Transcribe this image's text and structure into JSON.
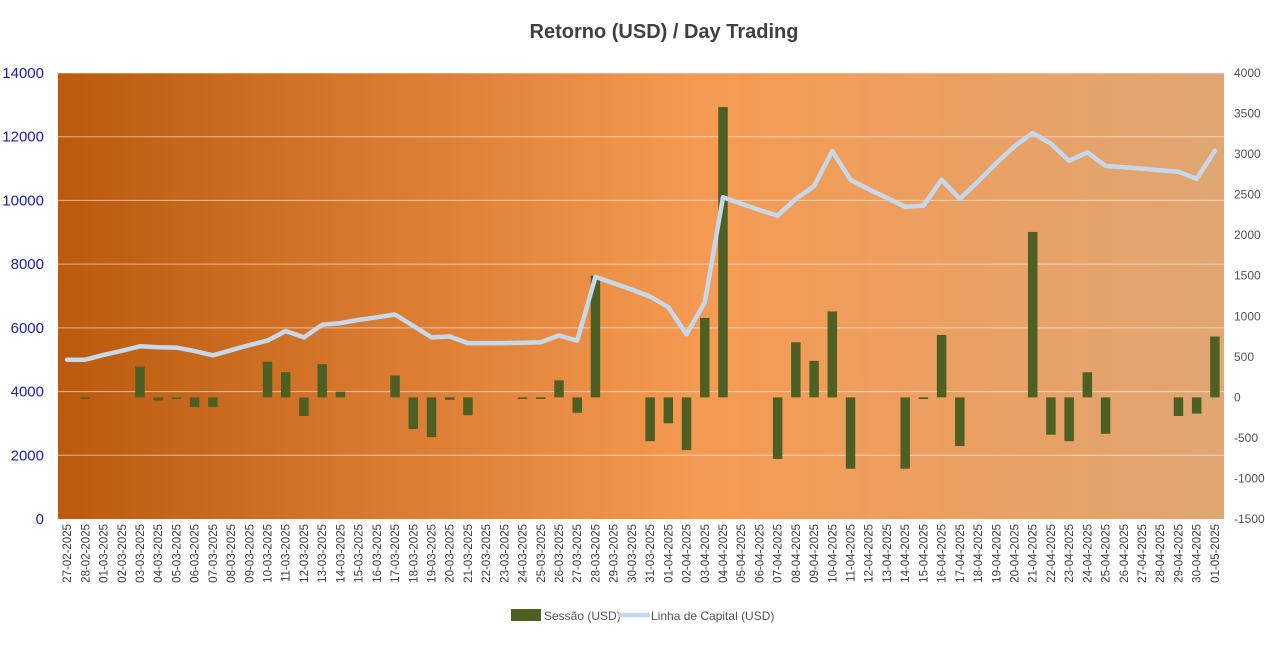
{
  "chart_data": {
    "type": "bar+line",
    "title": "Retorno (USD) / Day Trading",
    "colors": {
      "bar": "#4e5f24",
      "line": "#c6d9ec",
      "plot_gradient_start": "#bb5a0d",
      "plot_gradient_mid": "#f59a52",
      "plot_gradient_end": "#e0a673",
      "left_tick_color": "#1f1fa8"
    },
    "left_axis": {
      "ylim": [
        0,
        14000
      ],
      "ticks": [
        "0",
        "2000",
        "4000",
        "6000",
        "8000",
        "10000",
        "12000",
        "14000"
      ]
    },
    "right_axis": {
      "ylim": [
        -1500,
        4000
      ],
      "ticks": [
        "-1500",
        "-1000",
        "-500",
        "0",
        "500",
        "1000",
        "1500",
        "2000",
        "2500",
        "3000",
        "3500",
        "4000"
      ]
    },
    "categories": [
      "27-02-2025",
      "28-02-2025",
      "01-03-2025",
      "02-03-2025",
      "03-03-2025",
      "04-03-2025",
      "05-03-2025",
      "06-03-2025",
      "07-03-2025",
      "08-03-2025",
      "09-03-2025",
      "10-03-2025",
      "11-03-2025",
      "12-03-2025",
      "13-03-2025",
      "14-03-2025",
      "15-03-2025",
      "16-03-2025",
      "17-03-2025",
      "18-03-2025",
      "19-03-2025",
      "20-03-2025",
      "21-03-2025",
      "22-03-2025",
      "23-03-2025",
      "24-03-2025",
      "25-03-2025",
      "26-03-2025",
      "27-03-2025",
      "28-03-2025",
      "29-03-2025",
      "30-03-2025",
      "31-03-2025",
      "01-04-2025",
      "02-04-2025",
      "03-04-2025",
      "04-04-2025",
      "05-04-2025",
      "06-04-2025",
      "07-04-2025",
      "08-04-2025",
      "09-04-2025",
      "10-04-2025",
      "11-04-2025",
      "12-04-2025",
      "13-04-2025",
      "14-04-2025",
      "15-04-2025",
      "16-04-2025",
      "17-04-2025",
      "18-04-2025",
      "19-04-2025",
      "20-04-2025",
      "21-04-2025",
      "22-04-2025",
      "23-04-2025",
      "24-04-2025",
      "25-04-2025",
      "26-04-2025",
      "27-04-2025",
      "28-04-2025",
      "29-04-2025",
      "30-04-2025",
      "01-05-2025"
    ],
    "series": [
      {
        "name": "Sessão (USD)",
        "type": "bar",
        "axis": "right",
        "values": [
          0,
          -20,
          0,
          0,
          380,
          -40,
          -20,
          -120,
          -120,
          0,
          0,
          440,
          310,
          -230,
          410,
          70,
          0,
          0,
          270,
          -390,
          -490,
          -30,
          -220,
          0,
          0,
          -20,
          -20,
          210,
          -190,
          1500,
          0,
          0,
          -540,
          -320,
          -650,
          980,
          3580,
          0,
          0,
          -760,
          680,
          450,
          1060,
          -880,
          0,
          0,
          -880,
          -20,
          770,
          -600,
          0,
          0,
          0,
          2040,
          -460,
          -540,
          310,
          -450,
          0,
          0,
          0,
          -230,
          -200,
          750
        ]
      },
      {
        "name": "Linha de Capital (USD)",
        "type": "line",
        "axis": "left",
        "values": [
          5000,
          5000,
          5150,
          5280,
          5420,
          5390,
          5380,
          5270,
          5140,
          5300,
          5460,
          5600,
          5900,
          5700,
          6100,
          6150,
          6250,
          6330,
          6420,
          6060,
          5700,
          5730,
          5520,
          5520,
          5520,
          5530,
          5550,
          5760,
          5600,
          7600,
          7400,
          7200,
          6980,
          6650,
          5800,
          6800,
          10100,
          9900,
          9700,
          9520,
          10050,
          10450,
          11550,
          10650,
          10350,
          10080,
          9800,
          9830,
          10650,
          10050,
          10590,
          11170,
          11700,
          12120,
          11780,
          11240,
          11510,
          11080,
          11040,
          11000,
          10950,
          10900,
          10680,
          11560
        ]
      }
    ],
    "legend": {
      "placement": "bottom-center",
      "entries": [
        "Sessão (USD)",
        "Linha de Capital (USD)"
      ]
    },
    "grid": true
  }
}
